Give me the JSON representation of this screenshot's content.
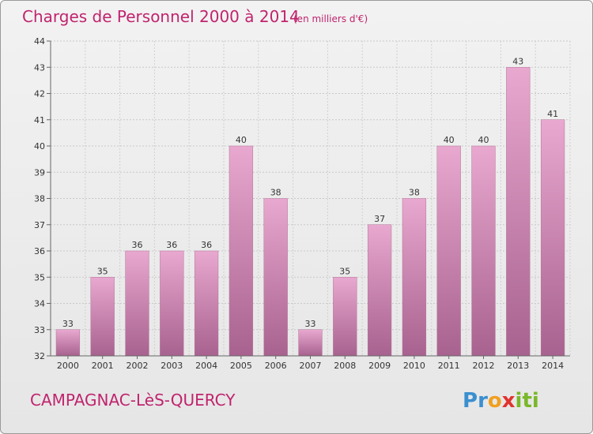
{
  "chart_data": {
    "type": "bar",
    "title": "Charges de Personnel 2000 à 2014",
    "subtitle": "(en milliers d'€)",
    "categories": [
      "2000",
      "2001",
      "2002",
      "2003",
      "2004",
      "2005",
      "2006",
      "2007",
      "2008",
      "2009",
      "2010",
      "2011",
      "2012",
      "2013",
      "2014"
    ],
    "values": [
      33,
      35,
      36,
      36,
      36,
      40,
      38,
      33,
      35,
      37,
      38,
      40,
      40,
      43,
      41
    ],
    "ylim": [
      32,
      44
    ],
    "yticks": [
      32,
      33,
      34,
      35,
      36,
      37,
      38,
      39,
      40,
      41,
      42,
      43,
      44
    ],
    "grid": true,
    "bar_color": "#d98bb8"
  },
  "footer": {
    "town": "CAMPAGNAC-LèS-QUERCY",
    "logo_letters": [
      "P",
      "r",
      "o",
      "x",
      "i",
      "t",
      "i"
    ],
    "logo_colors": [
      "#3a8fd0",
      "#3a8fd0",
      "#f0a020",
      "#e0332e",
      "#79b829",
      "#79b829",
      "#79b829"
    ]
  }
}
